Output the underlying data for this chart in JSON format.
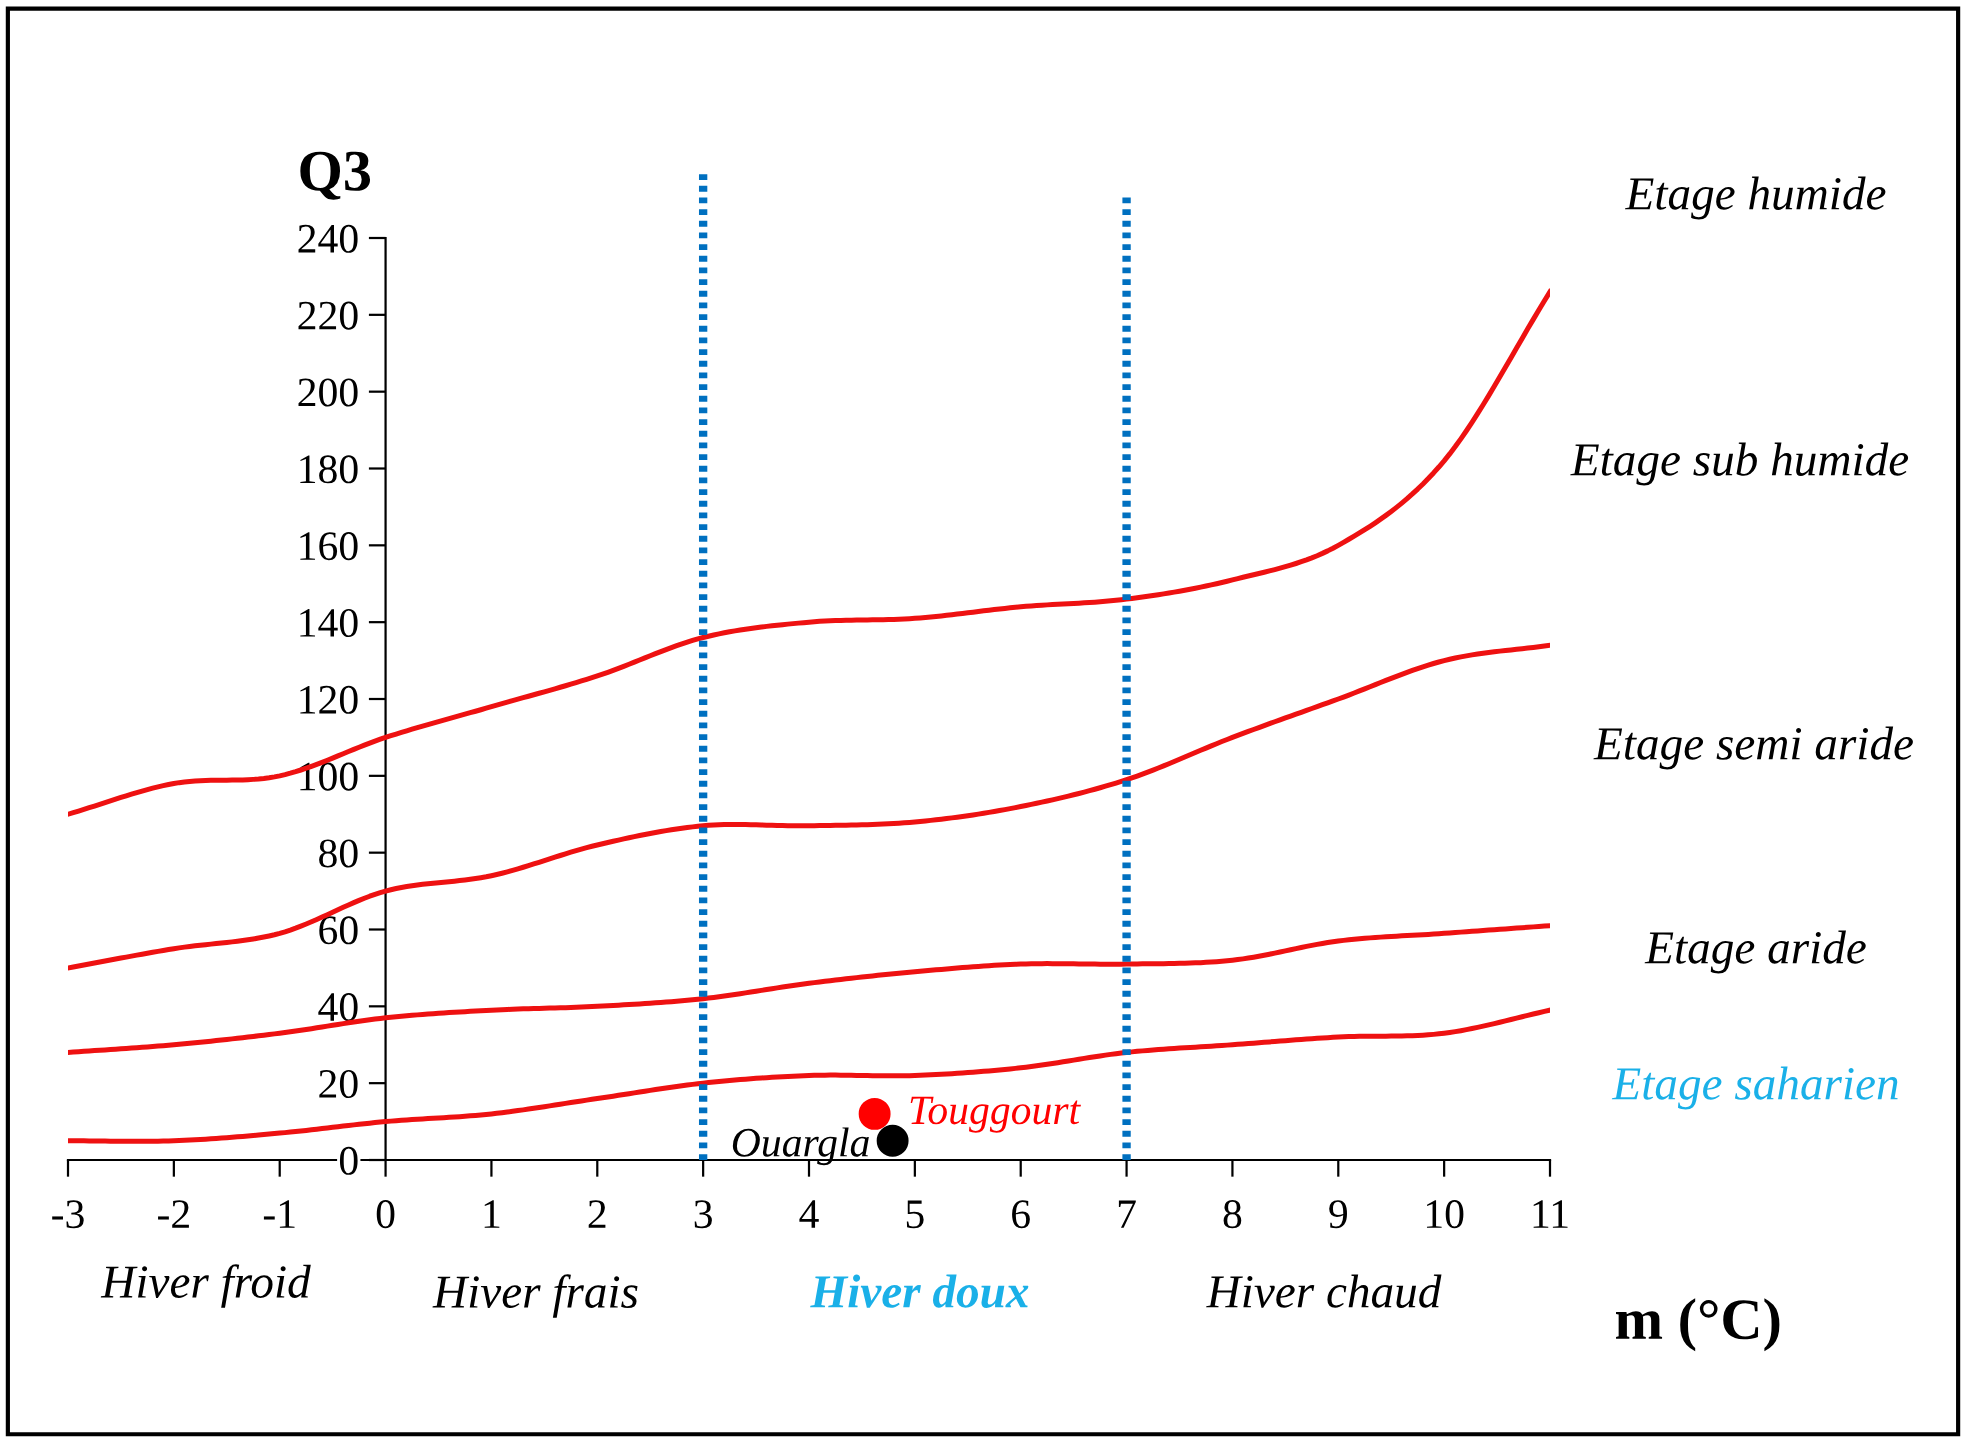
{
  "chart_data": {
    "type": "line",
    "xlabel": "m (°C)",
    "ylabel": "Q3",
    "x": [
      -3,
      -2,
      -1,
      0,
      1,
      2,
      3,
      4,
      5,
      6,
      7,
      8,
      9,
      10,
      11
    ],
    "xlim": [
      -3,
      11
    ],
    "xticks": [
      -3,
      -2,
      -1,
      0,
      1,
      2,
      3,
      4,
      5,
      6,
      7,
      8,
      9,
      10,
      11
    ],
    "ylim": [
      0,
      240
    ],
    "yticks": [
      0,
      20,
      40,
      60,
      80,
      100,
      120,
      140,
      160,
      180,
      200,
      220,
      240
    ],
    "grid": false,
    "legend": false,
    "marker": "none",
    "line_style": "solid",
    "series": [
      {
        "color": "#ee1111",
        "values": [
          90,
          98,
          100,
          110,
          118,
          126,
          136,
          140,
          141,
          144,
          146,
          151,
          160,
          182,
          226
        ]
      },
      {
        "color": "#ee1111",
        "values": [
          50,
          55,
          59,
          70,
          74,
          82,
          87,
          87,
          88,
          92,
          99,
          110,
          120,
          130,
          134
        ]
      },
      {
        "color": "#ee1111",
        "values": [
          28,
          30,
          33,
          37,
          39,
          40,
          42,
          46,
          49,
          51,
          51,
          52,
          57,
          59,
          61
        ]
      },
      {
        "color": "#ee1111",
        "values": [
          5,
          5,
          7,
          10,
          12,
          16,
          20,
          22,
          22,
          24,
          28,
          30,
          32,
          33,
          39
        ]
      },
      {
        "type": "scatter",
        "name": "Touggourt",
        "color": "#ff0000",
        "x": [
          4.62
        ],
        "values": [
          12
        ],
        "marker": "circle"
      },
      {
        "type": "scatter",
        "name": "Ouargla",
        "color": "#000000",
        "x": [
          4.79
        ],
        "values": [
          5
        ],
        "marker": "circle"
      }
    ],
    "ref_lines": [
      {
        "axis": "x",
        "value": 3,
        "color": "#0070c0",
        "line_style": "dotted"
      },
      {
        "axis": "x",
        "value": 7,
        "color": "#0070c0",
        "line_style": "dotted"
      }
    ],
    "annotations": [
      "Etage humide",
      "Etage sub humide",
      "Etage semi aride",
      "Etage aride",
      "Etage saharien",
      "Hiver froid",
      "Hiver frais",
      "Hiver doux",
      "Hiver chaud"
    ]
  }
}
